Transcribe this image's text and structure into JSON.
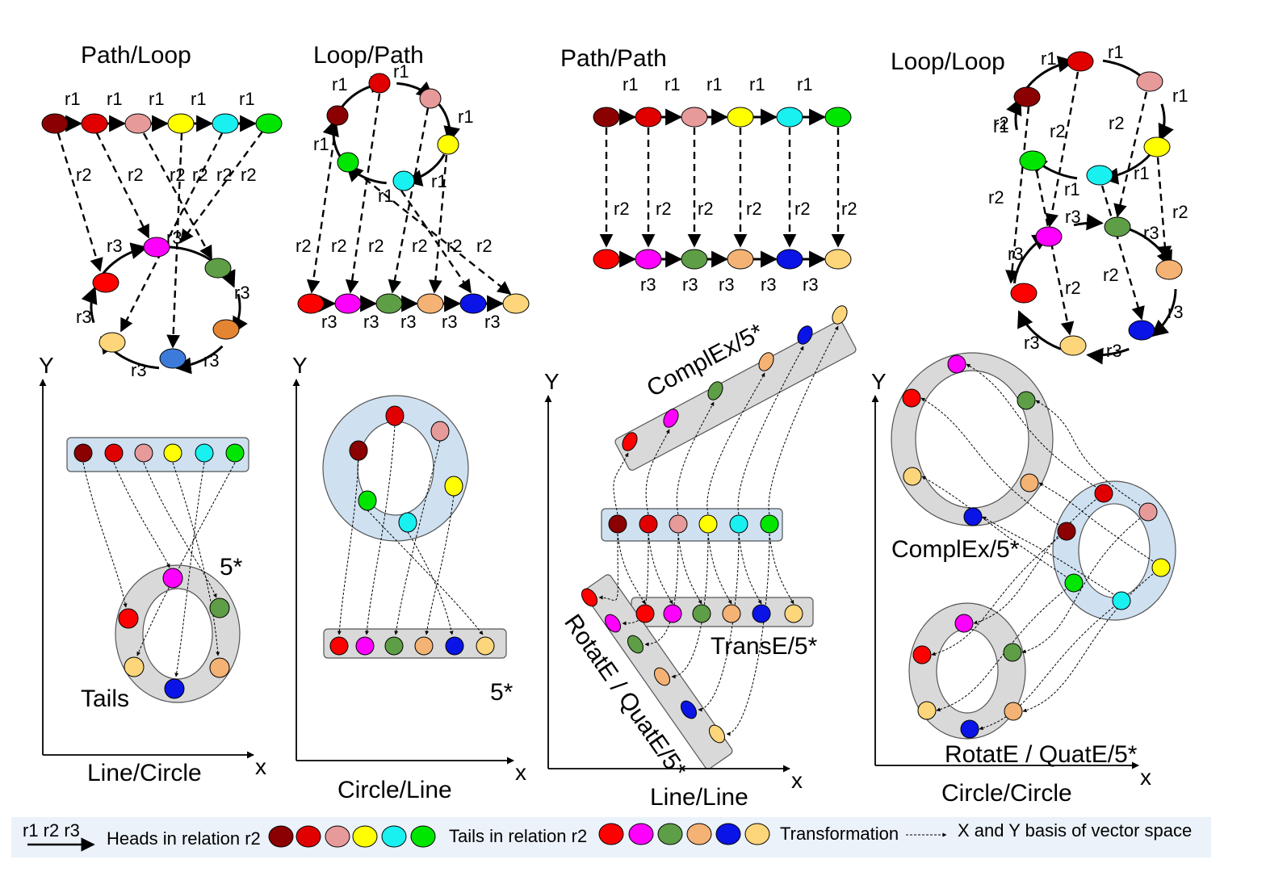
{
  "colors": {
    "dark_red": "#8B0000",
    "red": "#E00000",
    "pink": "#E79A9A",
    "yellow": "#FFFF00",
    "cyan": "#19F0F0",
    "green": "#00E600",
    "bright_red": "#FF0000",
    "magenta": "#FF00FF",
    "olive_green": "#5E9E46",
    "light_orange": "#F4B274",
    "blue": "#0A14E6",
    "light_yellow": "#FDD57A",
    "dark_orange": "#E38532",
    "steel_blue": "#3C7BD9",
    "panel_blue": "#CFE1F1",
    "panel_gray": "#D9D9D9",
    "legend_bg": "#EBF2F9"
  },
  "top_panels": {
    "path_loop": {
      "title": "Path/Loop",
      "relation_labels": [
        "r1",
        "r1",
        "r1",
        "r1",
        "r1",
        "r2",
        "r2",
        "r2",
        "r2",
        "r2",
        "r2",
        "r3",
        "r3",
        "r3",
        "r3",
        "r3",
        "r3"
      ]
    },
    "loop_path": {
      "title": "Loop/Path",
      "relation_labels": [
        "r1",
        "r1",
        "r1",
        "r1",
        "r1",
        "r1",
        "r2",
        "r2",
        "r2",
        "r2",
        "r2",
        "r2",
        "r3",
        "r3",
        "r3",
        "r3",
        "r3"
      ]
    },
    "path_path": {
      "title": "Path/Path",
      "relation_labels": [
        "r1",
        "r1",
        "r1",
        "r1",
        "r1",
        "r2",
        "r2",
        "r2",
        "r2",
        "r2",
        "r2",
        "r3",
        "r3",
        "r3",
        "r3",
        "r3"
      ]
    },
    "loop_loop": {
      "title": "Loop/Loop",
      "relation_labels": [
        "r1",
        "r1",
        "r1",
        "r1",
        "r1",
        "r2",
        "r2",
        "r2",
        "r1",
        "r2",
        "r2",
        "r3",
        "r3",
        "r3",
        "r3",
        "r3",
        "r3",
        "r2",
        "r2"
      ]
    }
  },
  "bottom_panels": {
    "line_circle": {
      "axis_y": "Y",
      "axis_x": "x",
      "caption": "Line/Circle",
      "tag": "5*",
      "tails_label": "Tails"
    },
    "circle_line": {
      "axis_y": "Y",
      "axis_x": "x",
      "caption": "Circle/Line",
      "tag": "5*"
    },
    "line_line": {
      "axis_y": "Y",
      "axis_x": "x",
      "caption": "Line/Line",
      "model_complex": "ComplEx/5*",
      "model_transe": "TransE/5*",
      "model_rotate": "RotatE / QuatE/5*"
    },
    "circle_circle": {
      "axis_y": "Y",
      "axis_x": "x",
      "caption": "Circle/Circle",
      "model_complex": "ComplEx/5*",
      "model_rotate": "RotatE / QuatE/5*"
    }
  },
  "legend": {
    "relations": "r1  r2 r3",
    "heads_label": "Heads in relation r2",
    "tails_label": "Tails in relation r2",
    "transformation_label": "Transformation",
    "basis_label": "X and Y basis of vector space"
  }
}
